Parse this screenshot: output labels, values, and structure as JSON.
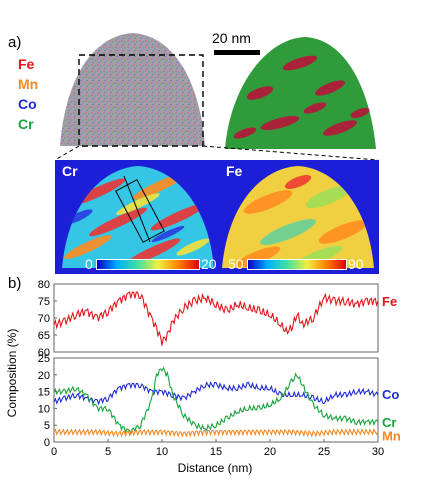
{
  "panel_a": {
    "label": "a)",
    "legend": [
      {
        "element": "Fe",
        "color": "#e4161b"
      },
      {
        "element": "Mn",
        "color": "#f08a24"
      },
      {
        "element": "Co",
        "color": "#1f2bd6"
      },
      {
        "element": "Cr",
        "color": "#18a33c"
      }
    ],
    "scale_bar": "20 nm",
    "maps": [
      {
        "label": "Cr",
        "colorbar_min": "0",
        "colorbar_max": "20"
      },
      {
        "label": "Fe",
        "colorbar_min": "50",
        "colorbar_max": "90"
      }
    ]
  },
  "panel_b": {
    "label": "b)"
  },
  "chart_data": {
    "type": "line",
    "xlabel": "Distance (nm)",
    "ylabel": "Composition (%)",
    "xlim": [
      0,
      30
    ],
    "x_ticks": [
      "0",
      "5",
      "10",
      "15",
      "20",
      "25",
      "30"
    ],
    "axis_break": true,
    "upper_ylim": [
      60,
      80
    ],
    "upper_y_ticks": [
      "60",
      "65",
      "70",
      "75",
      "80"
    ],
    "lower_ylim": [
      0,
      25
    ],
    "lower_y_ticks": [
      "0",
      "5",
      "10",
      "15",
      "20",
      "25"
    ],
    "series": [
      {
        "name": "Fe",
        "color": "#e4161b",
        "axis": "upper",
        "x": [
          0,
          1,
          2,
          3,
          4,
          5,
          6,
          7,
          8,
          9,
          9.5,
          10,
          10.5,
          11,
          12,
          13,
          14,
          15,
          16,
          17,
          18,
          19,
          20,
          21,
          21.5,
          22,
          22.5,
          23,
          24,
          25,
          26,
          27,
          28,
          29,
          30
        ],
        "y": [
          68,
          69,
          71,
          72,
          70,
          72,
          75,
          77,
          77,
          70,
          67,
          63,
          65,
          69,
          73,
          75,
          76,
          74,
          72,
          74,
          73,
          72,
          71,
          68,
          66,
          67,
          71,
          68,
          70,
          76,
          75,
          75,
          74,
          75,
          75
        ]
      },
      {
        "name": "Co",
        "color": "#1f2bd6",
        "axis": "lower",
        "x": [
          0,
          1,
          2,
          3,
          4,
          5,
          6,
          7,
          8,
          9,
          10,
          11,
          12,
          13,
          14,
          15,
          16,
          17,
          18,
          19,
          20,
          21,
          22,
          23,
          24,
          25,
          26,
          27,
          28,
          29,
          30
        ],
        "y": [
          12,
          13,
          14,
          13,
          12,
          13,
          16,
          17,
          17,
          15,
          15,
          14,
          13,
          15,
          17,
          17,
          16,
          16,
          17,
          16,
          16,
          14,
          14,
          14,
          13,
          12,
          14,
          14,
          15,
          15,
          14
        ]
      },
      {
        "name": "Cr",
        "color": "#18a33c",
        "axis": "lower",
        "x": [
          0,
          1,
          2,
          3,
          4,
          5,
          6,
          7,
          8,
          9,
          9.5,
          10,
          10.5,
          11,
          12,
          13,
          14,
          15,
          16,
          17,
          18,
          19,
          20,
          21,
          22,
          22.5,
          23,
          24,
          25,
          26,
          27,
          28,
          29,
          30
        ],
        "y": [
          15,
          15,
          16,
          14,
          10,
          10,
          5,
          3,
          5,
          12,
          20,
          22,
          20,
          14,
          8,
          5,
          4,
          5,
          7,
          9,
          10,
          10,
          11,
          13,
          18,
          20,
          17,
          11,
          8,
          7,
          7,
          6,
          6,
          6
        ]
      },
      {
        "name": "Mn",
        "color": "#f08a24",
        "axis": "lower",
        "x": [
          0,
          2,
          4,
          6,
          8,
          10,
          12,
          14,
          16,
          18,
          20,
          22,
          24,
          26,
          28,
          30
        ],
        "y": [
          3,
          3,
          3,
          2.5,
          3,
          3,
          2.5,
          3,
          3,
          3,
          3,
          3,
          2.5,
          3,
          3,
          3
        ]
      }
    ]
  }
}
